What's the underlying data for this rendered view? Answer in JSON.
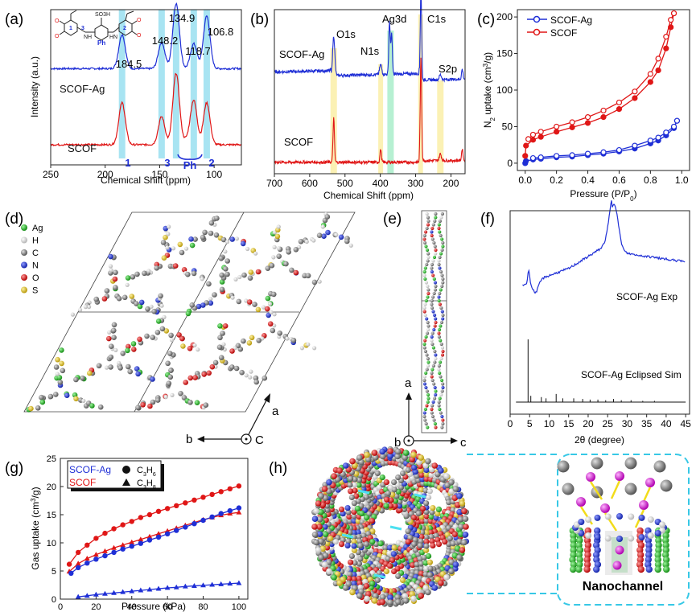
{
  "colors": {
    "blue": "#1f2fd6",
    "red": "#e01616",
    "cyan_band": "#a8e4f2",
    "yellow_band": "#fbf1b4",
    "green_band": "#b6f0d2",
    "box_cyan": "#37c8e6",
    "atom_Ag": "#22bb22",
    "atom_H": "#f2f2f2",
    "atom_C": "#7a7a7a",
    "atom_N": "#2233cc",
    "atom_O": "#dd2222",
    "atom_S": "#e3c51d"
  },
  "panels": {
    "a": "(a)",
    "b": "(b)",
    "c": "(c)",
    "d": "(d)",
    "e": "(e)",
    "f": "(f)",
    "g": "(g)",
    "h": "(h)"
  },
  "chart_data": [
    {
      "panel": "a",
      "type": "line",
      "xlabel": "Chemical Shift (ppm)",
      "ylabel": "Intensity (a.u.)",
      "xlim": [
        250,
        75
      ],
      "xticks": [
        250,
        200,
        150,
        100
      ],
      "series": [
        {
          "name": "SCOF-Ag",
          "color": "blue",
          "baseline": 0.62,
          "peaks": [
            [
              184.5,
              0.22,
              3
            ],
            [
              148.2,
              0.17,
              3
            ],
            [
              134.9,
              0.42,
              3
            ],
            [
              118.7,
              0.16,
              3
            ],
            [
              106.8,
              0.34,
              3
            ]
          ]
        },
        {
          "name": "SCOF",
          "color": "red",
          "baseline": 0.13,
          "peaks": [
            [
              184.5,
              0.27,
              3
            ],
            [
              148.2,
              0.18,
              3
            ],
            [
              134.9,
              0.46,
              3
            ],
            [
              118.7,
              0.28,
              3
            ],
            [
              106.8,
              0.27,
              3
            ]
          ]
        }
      ],
      "peak_labels": [
        "184.5",
        "148.2",
        "134.9",
        "118.7",
        "106.8"
      ],
      "band_labels": [
        "1",
        "3",
        "Ph",
        "2"
      ],
      "structure_labels": {
        "ring1": "1",
        "ring2": "2",
        "ring3": "3",
        "ph": "Ph",
        "so3h": "SO3H",
        "nh": "NH",
        "hn": "HN"
      }
    },
    {
      "panel": "b",
      "type": "line",
      "xlabel": "Chemical Shift (ppm)",
      "xlim": [
        700,
        160
      ],
      "xticks": [
        700,
        600,
        500,
        400,
        300,
        200
      ],
      "series": [
        {
          "name": "SCOF-Ag",
          "color": "blue",
          "baseline": 0.62,
          "peaks": [
            [
              532,
              0.24,
              3
            ],
            [
              399,
              0.06,
              3
            ],
            [
              374,
              0.32,
              2
            ],
            [
              368,
              0.25,
              2
            ],
            [
              285,
              0.55,
              2
            ],
            [
              230,
              0.03,
              3
            ],
            [
              168,
              0.06,
              2
            ]
          ]
        },
        {
          "name": "SCOF",
          "color": "red",
          "baseline": 0.07,
          "peaks": [
            [
              532,
              0.27,
              2
            ],
            [
              399,
              0.08,
              2
            ],
            [
              285,
              0.62,
              2
            ],
            [
              230,
              0.04,
              3
            ],
            [
              168,
              0.07,
              2
            ]
          ]
        }
      ],
      "annotations": [
        "O1s",
        "N1s",
        "Ag3d",
        "C1s",
        "S2p"
      ]
    },
    {
      "panel": "c",
      "type": "line",
      "xlabel": "Pressure (P/P",
      "xlabel_sub": "0",
      "xlabel_end": ")",
      "ylabel": "N",
      "ylabel_sub": "2",
      "ylabel_end": " uptake (cm",
      "ylabel_sup": "3",
      "ylabel_tail": "/g)",
      "xlim": [
        -0.05,
        1.05
      ],
      "ylim": [
        -10,
        210
      ],
      "xticks": [
        0.0,
        0.2,
        0.4,
        0.6,
        0.8,
        1.0
      ],
      "yticks": [
        0,
        50,
        100,
        150,
        200
      ],
      "series": [
        {
          "name": "SCOF-Ag",
          "color": "blue",
          "adsorption": [
            [
              0.0,
              0
            ],
            [
              0.005,
              3
            ],
            [
              0.05,
              5
            ],
            [
              0.1,
              6
            ],
            [
              0.2,
              8
            ],
            [
              0.3,
              9
            ],
            [
              0.4,
              11
            ],
            [
              0.5,
              13
            ],
            [
              0.6,
              16
            ],
            [
              0.7,
              20
            ],
            [
              0.8,
              27
            ],
            [
              0.85,
              31
            ],
            [
              0.9,
              38
            ],
            [
              0.95,
              48
            ],
            [
              0.97,
              58
            ]
          ],
          "desorption": [
            [
              0.97,
              58
            ],
            [
              0.95,
              50
            ],
            [
              0.9,
              42
            ],
            [
              0.85,
              35
            ],
            [
              0.8,
              31
            ],
            [
              0.7,
              24
            ],
            [
              0.6,
              18
            ],
            [
              0.5,
              15
            ],
            [
              0.4,
              13
            ],
            [
              0.3,
              11
            ],
            [
              0.2,
              10
            ],
            [
              0.1,
              8
            ],
            [
              0.05,
              7
            ]
          ]
        },
        {
          "name": "SCOF",
          "color": "red",
          "adsorption": [
            [
              0.0,
              10
            ],
            [
              0.005,
              24
            ],
            [
              0.05,
              32
            ],
            [
              0.1,
              36
            ],
            [
              0.2,
              43
            ],
            [
              0.3,
              49
            ],
            [
              0.4,
              55
            ],
            [
              0.5,
              63
            ],
            [
              0.6,
              74
            ],
            [
              0.7,
              89
            ],
            [
              0.8,
              111
            ],
            [
              0.85,
              127
            ],
            [
              0.9,
              157
            ],
            [
              0.93,
              186
            ],
            [
              0.95,
              205
            ]
          ],
          "desorption": [
            [
              0.95,
              205
            ],
            [
              0.93,
              196
            ],
            [
              0.9,
              173
            ],
            [
              0.85,
              143
            ],
            [
              0.8,
              122
            ],
            [
              0.7,
              98
            ],
            [
              0.6,
              83
            ],
            [
              0.5,
              72
            ],
            [
              0.4,
              63
            ],
            [
              0.3,
              56
            ],
            [
              0.2,
              50
            ],
            [
              0.1,
              43
            ],
            [
              0.05,
              39
            ],
            [
              0.02,
              33
            ]
          ]
        }
      ]
    },
    {
      "panel": "f",
      "type": "line",
      "xlabel": "2θ (degree)",
      "xlim": [
        0,
        46
      ],
      "xticks": [
        0,
        5,
        10,
        15,
        20,
        25,
        30,
        35,
        40,
        45
      ],
      "series": [
        {
          "name": "SCOF-Ag Exp",
          "color": "blue"
        },
        {
          "name": "SCOF-Ag Eclipsed Sim",
          "color": "black",
          "sticks": [
            [
              4.6,
              1.0
            ],
            [
              5.3,
              0.1
            ],
            [
              8.0,
              0.08
            ],
            [
              9.2,
              0.06
            ],
            [
              11.8,
              0.13
            ],
            [
              13.5,
              0.06
            ],
            [
              16.3,
              0.06
            ],
            [
              18.6,
              0.05
            ],
            [
              20.5,
              0.04
            ],
            [
              22.5,
              0.04
            ],
            [
              24.5,
              0.03
            ],
            [
              26.5,
              0.05
            ],
            [
              28.5,
              0.03
            ],
            [
              31.0,
              0.03
            ],
            [
              34.0,
              0.02
            ],
            [
              37.0,
              0.02
            ]
          ]
        }
      ]
    },
    {
      "panel": "g",
      "type": "scatter",
      "xlabel": "Pressure (kPa)",
      "ylabel": "Gas uptake (cm",
      "ylabel_sup": "3",
      "ylabel_tail": "/g)",
      "xlim": [
        0,
        105
      ],
      "ylim": [
        0,
        25
      ],
      "xticks": [
        0,
        20,
        40,
        60,
        80,
        100
      ],
      "yticks": [
        0,
        5,
        10,
        15,
        20,
        25
      ],
      "legend": {
        "scof_ag": "SCOF-Ag",
        "scof": "SCOF",
        "c3h6_main": "C",
        "c3h6_sub1": "3",
        "c3h6_mid": "H",
        "c3h6_sub2": "6",
        "c3h8_main": "C",
        "c3h8_sub1": "3",
        "c3h8_mid": "H",
        "c3h8_sub2": "8"
      },
      "series": [
        {
          "name": "SCOF C3H6",
          "color": "red",
          "marker": "circle",
          "points": [
            [
              5,
              6.2
            ],
            [
              10,
              8.3
            ],
            [
              15,
              9.6
            ],
            [
              20,
              10.8
            ],
            [
              25,
              11.7
            ],
            [
              30,
              12.5
            ],
            [
              35,
              13.2
            ],
            [
              40,
              13.8
            ],
            [
              45,
              14.5
            ],
            [
              50,
              15.0
            ],
            [
              55,
              15.6
            ],
            [
              60,
              16.1
            ],
            [
              65,
              16.6
            ],
            [
              70,
              17.1
            ],
            [
              75,
              17.6
            ],
            [
              80,
              18.1
            ],
            [
              85,
              18.6
            ],
            [
              90,
              19.1
            ],
            [
              95,
              19.6
            ],
            [
              100,
              20.1
            ]
          ]
        },
        {
          "name": "SCOF C3H8",
          "color": "red",
          "marker": "triangle",
          "points": [
            [
              5,
              4.9
            ],
            [
              10,
              6.3
            ],
            [
              15,
              7.2
            ],
            [
              20,
              7.9
            ],
            [
              25,
              8.5
            ],
            [
              30,
              9.1
            ],
            [
              35,
              9.6
            ],
            [
              40,
              10.1
            ],
            [
              45,
              10.6
            ],
            [
              50,
              11.1
            ],
            [
              55,
              11.6
            ],
            [
              60,
              12.1
            ],
            [
              65,
              12.6
            ],
            [
              70,
              13.1
            ],
            [
              75,
              13.6
            ],
            [
              80,
              14.1
            ],
            [
              85,
              14.5
            ],
            [
              90,
              14.9
            ],
            [
              95,
              15.2
            ],
            [
              100,
              15.4
            ]
          ]
        },
        {
          "name": "SCOF-Ag C3H6",
          "color": "blue",
          "marker": "circle",
          "points": [
            [
              6,
              4.6
            ],
            [
              10,
              5.6
            ],
            [
              15,
              6.4
            ],
            [
              20,
              7.1
            ],
            [
              25,
              7.7
            ],
            [
              30,
              8.3
            ],
            [
              35,
              8.9
            ],
            [
              40,
              9.4
            ],
            [
              45,
              9.9
            ],
            [
              50,
              10.5
            ],
            [
              55,
              11.0
            ],
            [
              60,
              11.6
            ],
            [
              65,
              12.2
            ],
            [
              70,
              12.8
            ],
            [
              75,
              13.4
            ],
            [
              80,
              14.0
            ],
            [
              85,
              14.6
            ],
            [
              90,
              15.2
            ],
            [
              95,
              15.7
            ],
            [
              100,
              16.2
            ]
          ]
        },
        {
          "name": "SCOF-Ag C3H8",
          "color": "blue",
          "marker": "triangle",
          "points": [
            [
              10,
              0.4
            ],
            [
              15,
              0.6
            ],
            [
              20,
              0.8
            ],
            [
              25,
              0.95
            ],
            [
              30,
              1.1
            ],
            [
              35,
              1.25
            ],
            [
              40,
              1.4
            ],
            [
              45,
              1.55
            ],
            [
              50,
              1.7
            ],
            [
              55,
              1.85
            ],
            [
              60,
              2.0
            ],
            [
              65,
              2.1
            ],
            [
              70,
              2.25
            ],
            [
              75,
              2.35
            ],
            [
              80,
              2.45
            ],
            [
              85,
              2.55
            ],
            [
              90,
              2.65
            ],
            [
              95,
              2.75
            ],
            [
              100,
              2.85
            ]
          ]
        }
      ]
    }
  ],
  "panel_d": {
    "legend": [
      "Ag",
      "H",
      "C",
      "N",
      "O",
      "S"
    ],
    "axis_a": "a",
    "axis_b": "b",
    "axis_c": "C"
  },
  "panel_e": {
    "axis_a": "a",
    "axis_b": "b",
    "axis_c": "c"
  },
  "panel_h": {
    "caption": "Nanochannel"
  }
}
